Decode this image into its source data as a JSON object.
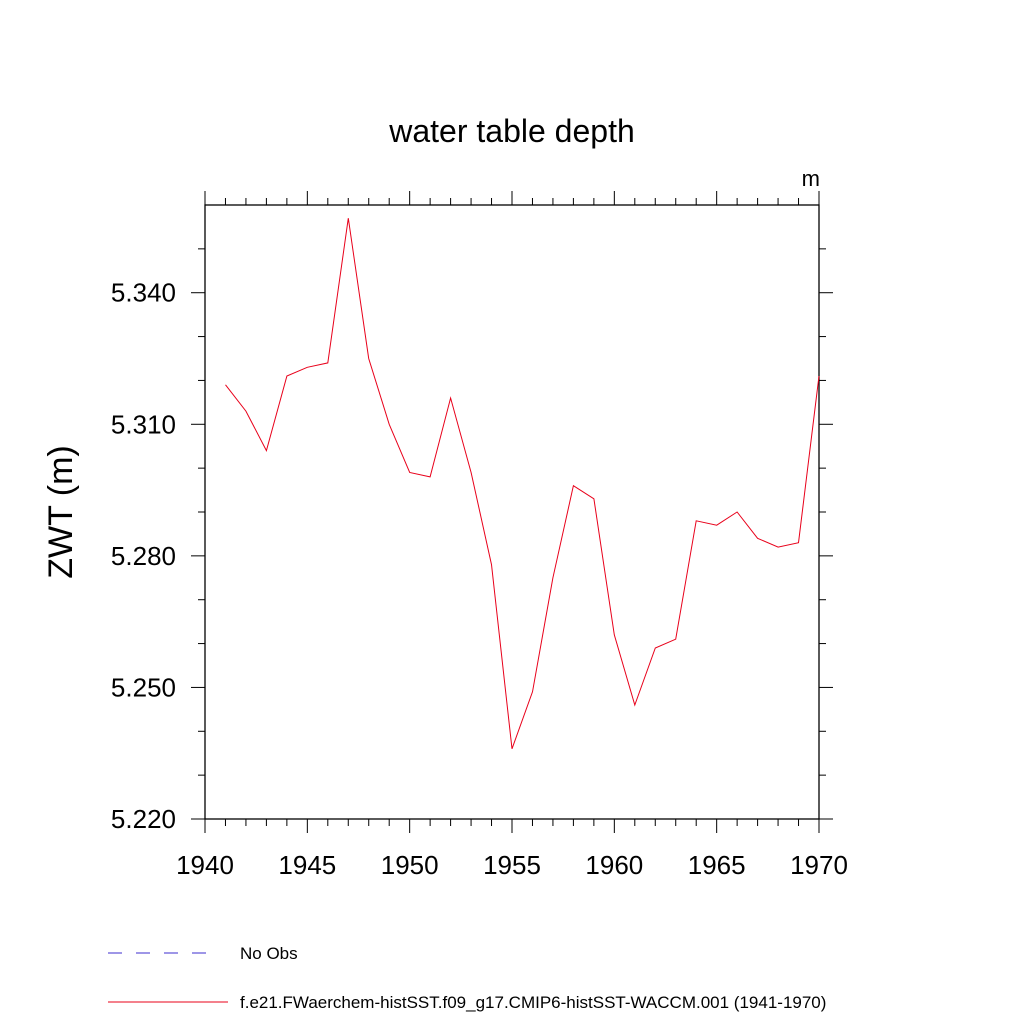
{
  "chart_data": {
    "type": "line",
    "title": "water table depth",
    "units": "m",
    "ylabel": "ZWT  (m)",
    "xlabel": "",
    "xlim": [
      1940,
      1970
    ],
    "ylim": [
      5.22,
      5.36
    ],
    "x_ticks": [
      1940,
      1945,
      1950,
      1955,
      1960,
      1965,
      1970
    ],
    "y_ticks": [
      "5.220",
      "5.250",
      "5.280",
      "5.310",
      "5.340"
    ],
    "grid": false,
    "series": [
      {
        "name": "f.e21.FWaerchem-histSST.f09_g17.CMIP6-histSST-WACCM.001 (1941-1970)",
        "color": "#e8001a",
        "x": [
          1941,
          1942,
          1943,
          1944,
          1945,
          1946,
          1947,
          1948,
          1949,
          1950,
          1951,
          1952,
          1953,
          1954,
          1955,
          1956,
          1957,
          1958,
          1959,
          1960,
          1961,
          1962,
          1963,
          1964,
          1965,
          1966,
          1967,
          1968,
          1969,
          1970
        ],
        "y": [
          5.319,
          5.313,
          5.304,
          5.321,
          5.323,
          5.324,
          5.357,
          5.325,
          5.31,
          5.299,
          5.298,
          5.316,
          5.299,
          5.278,
          5.236,
          5.249,
          5.275,
          5.296,
          5.293,
          5.262,
          5.246,
          5.259,
          5.261,
          5.288,
          5.287,
          5.29,
          5.284,
          5.282,
          5.283,
          5.321
        ]
      }
    ],
    "legend": {
      "position": "bottom",
      "entries": [
        {
          "label": "No Obs",
          "color": "#3d2ecf",
          "style": "dashed"
        },
        {
          "label": "f.e21.FWaerchem-histSST.f09_g17.CMIP6-histSST-WACCM.001 (1941-1970)",
          "color": "#e8001a",
          "style": "solid"
        }
      ]
    }
  }
}
